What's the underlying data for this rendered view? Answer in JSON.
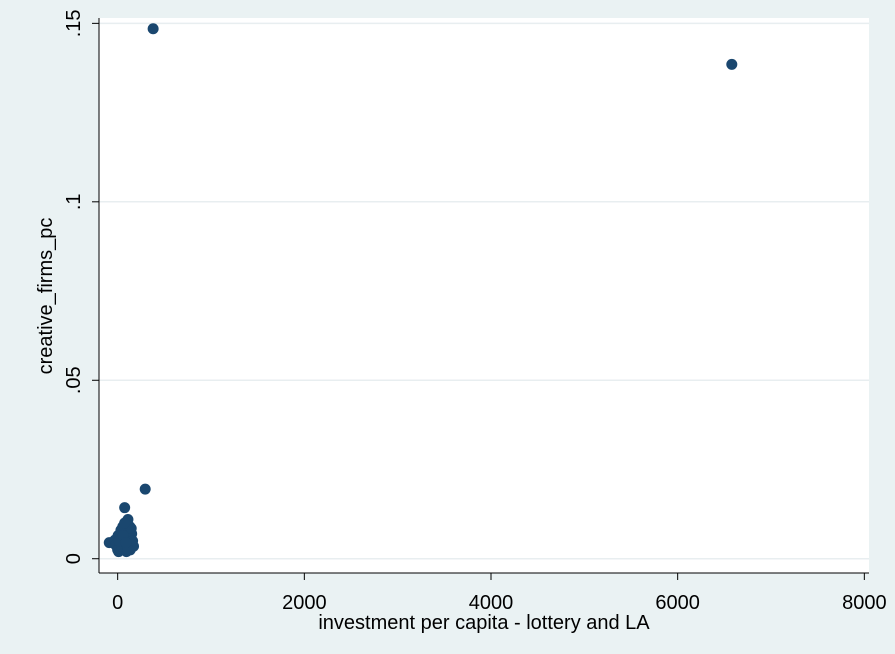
{
  "chart_data": {
    "type": "scatter",
    "title": "",
    "xlabel": "investment per capita - lottery and LA",
    "ylabel": "creative_firms_pc",
    "xlim": [
      -200,
      8050
    ],
    "ylim": [
      -0.004,
      0.1515
    ],
    "x_ticks": [
      {
        "value": 0,
        "label": "0"
      },
      {
        "value": 2000,
        "label": "2000"
      },
      {
        "value": 4000,
        "label": "4000"
      },
      {
        "value": 6000,
        "label": "6000"
      },
      {
        "value": 8000,
        "label": "8000"
      }
    ],
    "y_ticks": [
      {
        "value": 0,
        "label": "0"
      },
      {
        "value": 0.05,
        "label": ".05"
      },
      {
        "value": 0.1,
        "label": ".1"
      },
      {
        "value": 0.15,
        "label": ".15"
      }
    ],
    "grid": "horizontal",
    "colors": {
      "outer_background": "#eaf2f3",
      "plot_background": "#ffffff",
      "grid": "#e8eef0",
      "marker": "#1a476f"
    },
    "series": [
      {
        "points": [
          [
            380,
            0.1485
          ],
          [
            6580,
            0.1385
          ],
          [
            295,
            0.0195
          ],
          [
            75,
            0.0143
          ],
          [
            -90,
            0.0045
          ],
          [
            -30,
            0.0052
          ],
          [
            -20,
            0.0038
          ],
          [
            0,
            0.0025
          ],
          [
            10,
            0.002
          ],
          [
            20,
            0.003
          ],
          [
            30,
            0.0045
          ],
          [
            40,
            0.006
          ],
          [
            50,
            0.0075
          ],
          [
            55,
            0.009
          ],
          [
            60,
            0.004
          ],
          [
            65,
            0.0025
          ],
          [
            70,
            0.0055
          ],
          [
            80,
            0.0065
          ],
          [
            85,
            0.0035
          ],
          [
            90,
            0.008
          ],
          [
            95,
            0.002
          ],
          [
            100,
            0.005
          ],
          [
            105,
            0.007
          ],
          [
            110,
            0.011
          ],
          [
            115,
            0.003
          ],
          [
            120,
            0.0045
          ],
          [
            125,
            0.006
          ],
          [
            130,
            0.009
          ],
          [
            135,
            0.0025
          ],
          [
            140,
            0.004
          ],
          [
            150,
            0.007
          ],
          [
            160,
            0.005
          ],
          [
            170,
            0.0035
          ],
          [
            5,
            0.0065
          ],
          [
            25,
            0.0055
          ],
          [
            45,
            0.0035
          ],
          [
            35,
            0.008
          ],
          [
            15,
            0.005
          ],
          [
            100,
            0.0035
          ],
          [
            145,
            0.0085
          ],
          [
            75,
            0.01
          ],
          [
            60,
            0.0065
          ],
          [
            110,
            0.0025
          ],
          [
            90,
            0.0045
          ]
        ]
      }
    ]
  }
}
